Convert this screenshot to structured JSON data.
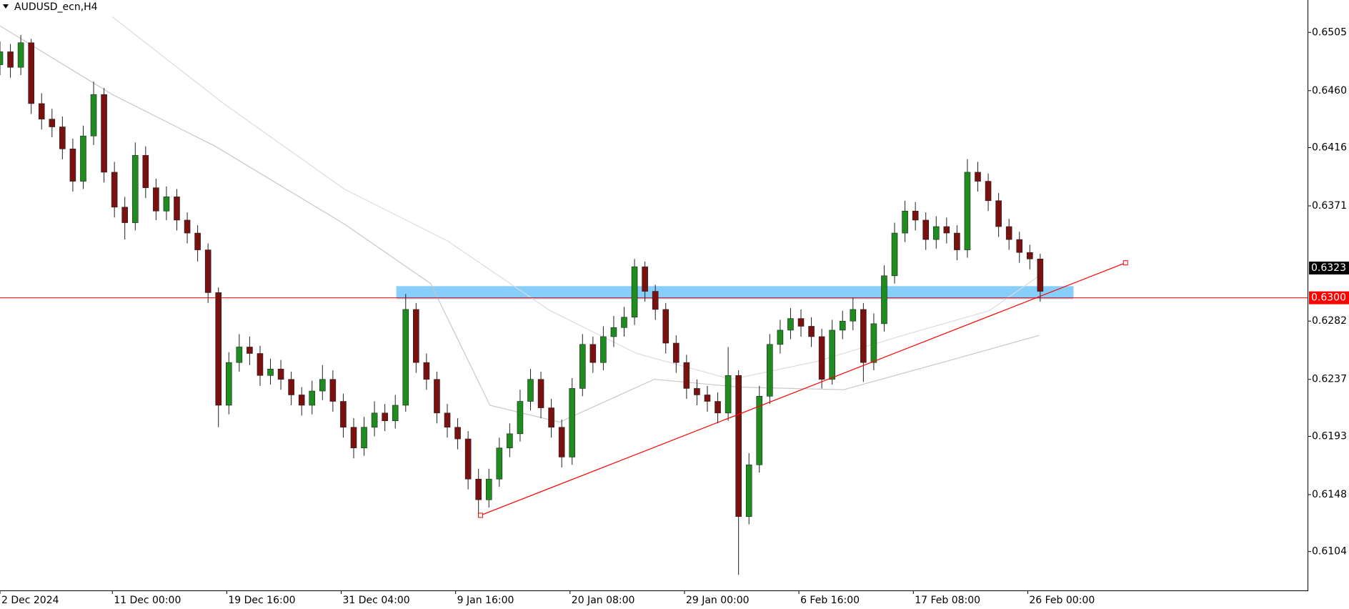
{
  "chart_data": {
    "type": "candlestick",
    "title": "AUDUSD_ecn,H4",
    "up_color": "#1e8c1e",
    "down_color": "#7a1010",
    "wick_color": "#222222",
    "open": [
      0.648,
      0.649,
      0.6478,
      0.6497,
      0.645,
      0.6438,
      0.6432,
      0.6415,
      0.639,
      0.6425,
      0.6457,
      0.6397,
      0.637,
      0.6358,
      0.641,
      0.6385,
      0.6367,
      0.6378,
      0.636,
      0.635,
      0.6337,
      0.6304,
      0.6217,
      0.625,
      0.6262,
      0.6257,
      0.624,
      0.6245,
      0.6237,
      0.6225,
      0.6217,
      0.6228,
      0.6237,
      0.622,
      0.62,
      0.6184,
      0.62,
      0.6211,
      0.6205,
      0.6217,
      0.6291,
      0.625,
      0.6237,
      0.6211,
      0.62,
      0.6191,
      0.616,
      0.6144,
      0.616,
      0.6184,
      0.6195,
      0.622,
      0.6237,
      0.6215,
      0.62,
      0.6177,
      0.623,
      0.6264,
      0.625,
      0.627,
      0.6277,
      0.6285,
      0.6324,
      0.6305,
      0.6291,
      0.6265,
      0.625,
      0.623,
      0.6225,
      0.622,
      0.6211,
      0.624,
      0.6131,
      0.6171,
      0.6224,
      0.6264,
      0.6275,
      0.6284,
      0.6278,
      0.627,
      0.6237,
      0.6275,
      0.6282,
      0.6291,
      0.625,
      0.628,
      0.6317,
      0.635,
      0.6367,
      0.636,
      0.6345,
      0.6355,
      0.635,
      0.6337,
      0.6397,
      0.639,
      0.6375,
      0.6355,
      0.6345,
      0.6335,
      0.633
    ],
    "high": [
      0.6498,
      0.6496,
      0.6503,
      0.65,
      0.6458,
      0.6446,
      0.644,
      0.6423,
      0.6433,
      0.6467,
      0.6462,
      0.6405,
      0.6378,
      0.642,
      0.6417,
      0.6392,
      0.6386,
      0.6384,
      0.6366,
      0.6356,
      0.6342,
      0.6308,
      0.6258,
      0.6272,
      0.627,
      0.6263,
      0.6253,
      0.6252,
      0.6243,
      0.6231,
      0.6236,
      0.6248,
      0.6244,
      0.6226,
      0.6207,
      0.6208,
      0.622,
      0.6218,
      0.6225,
      0.6303,
      0.6296,
      0.6257,
      0.6243,
      0.6218,
      0.6207,
      0.6197,
      0.6168,
      0.6168,
      0.6192,
      0.6203,
      0.6229,
      0.6245,
      0.6243,
      0.6222,
      0.6206,
      0.6238,
      0.6272,
      0.627,
      0.6278,
      0.6286,
      0.6293,
      0.633,
      0.6328,
      0.631,
      0.6296,
      0.6271,
      0.6256,
      0.6237,
      0.6232,
      0.6227,
      0.6262,
      0.6244,
      0.618,
      0.6232,
      0.6272,
      0.6283,
      0.6292,
      0.6291,
      0.6285,
      0.6276,
      0.6283,
      0.629,
      0.63,
      0.6296,
      0.6288,
      0.6325,
      0.6358,
      0.6375,
      0.6374,
      0.6366,
      0.6363,
      0.6362,
      0.6356,
      0.6407,
      0.6405,
      0.6396,
      0.6381,
      0.6361,
      0.6351,
      0.6341,
      0.6334
    ],
    "low": [
      0.6472,
      0.647,
      0.6472,
      0.6442,
      0.643,
      0.6424,
      0.6407,
      0.6382,
      0.6384,
      0.6418,
      0.6389,
      0.6362,
      0.6345,
      0.6352,
      0.6377,
      0.636,
      0.636,
      0.6352,
      0.6342,
      0.6328,
      0.6296,
      0.62,
      0.621,
      0.6243,
      0.6248,
      0.6232,
      0.6233,
      0.6229,
      0.6217,
      0.6209,
      0.621,
      0.6221,
      0.6212,
      0.6192,
      0.6176,
      0.6178,
      0.6193,
      0.6197,
      0.6199,
      0.6212,
      0.6242,
      0.6229,
      0.6203,
      0.6192,
      0.6183,
      0.6152,
      0.6131,
      0.6138,
      0.6154,
      0.6177,
      0.6189,
      0.6213,
      0.6207,
      0.6192,
      0.6169,
      0.6171,
      0.6224,
      0.6242,
      0.6244,
      0.6262,
      0.627,
      0.6279,
      0.6297,
      0.6283,
      0.6257,
      0.6242,
      0.6222,
      0.6217,
      0.6212,
      0.6203,
      0.6205,
      0.6086,
      0.6125,
      0.6165,
      0.6218,
      0.6257,
      0.6268,
      0.627,
      0.6262,
      0.623,
      0.6233,
      0.6268,
      0.6275,
      0.6235,
      0.6244,
      0.6274,
      0.6311,
      0.6343,
      0.6352,
      0.6337,
      0.6338,
      0.6342,
      0.6329,
      0.6331,
      0.6382,
      0.6367,
      0.6347,
      0.6337,
      0.6327,
      0.6322,
      0.6297
    ],
    "close": [
      0.649,
      0.6478,
      0.6497,
      0.645,
      0.6438,
      0.6432,
      0.6415,
      0.639,
      0.6425,
      0.6457,
      0.6397,
      0.637,
      0.6358,
      0.641,
      0.6385,
      0.6367,
      0.6378,
      0.636,
      0.635,
      0.6337,
      0.6304,
      0.6217,
      0.625,
      0.6262,
      0.6257,
      0.624,
      0.6245,
      0.6237,
      0.6225,
      0.6217,
      0.6228,
      0.6237,
      0.622,
      0.62,
      0.6184,
      0.62,
      0.6211,
      0.6205,
      0.6217,
      0.6291,
      0.625,
      0.6237,
      0.6211,
      0.62,
      0.6191,
      0.616,
      0.6144,
      0.616,
      0.6184,
      0.6195,
      0.622,
      0.6237,
      0.6215,
      0.62,
      0.6177,
      0.623,
      0.6264,
      0.625,
      0.627,
      0.6277,
      0.6285,
      0.6324,
      0.6305,
      0.6291,
      0.6265,
      0.625,
      0.623,
      0.6225,
      0.622,
      0.6211,
      0.624,
      0.6131,
      0.6171,
      0.6224,
      0.6264,
      0.6275,
      0.6284,
      0.6278,
      0.627,
      0.6237,
      0.6275,
      0.6282,
      0.6291,
      0.625,
      0.628,
      0.6317,
      0.635,
      0.6367,
      0.636,
      0.6345,
      0.6355,
      0.635,
      0.6337,
      0.6397,
      0.639,
      0.6375,
      0.6355,
      0.6345,
      0.6335,
      0.633,
      0.6305
    ],
    "lines": [
      {
        "color": "#c8c8c8",
        "x": [
          0,
          10.8,
          20.7,
          33.1,
          41.4,
          47.1,
          53.8,
          62.9,
          71.1,
          81.1,
          91,
          99.9
        ],
        "y": [
          0.651,
          0.6457,
          0.6417,
          0.6357,
          0.6311,
          0.6217,
          0.6204,
          0.6237,
          0.6231,
          0.6229,
          0.6251,
          0.6271
        ]
      },
      {
        "color": "#dcdcdc",
        "x": [
          10.8,
          21.5,
          33.1,
          43,
          52.9,
          61.2,
          70.3,
          78.6,
          86.8,
          95.1,
          99.9
        ],
        "y": [
          0.6517,
          0.645,
          0.6384,
          0.6344,
          0.629,
          0.6257,
          0.6237,
          0.6251,
          0.6271,
          0.629,
          0.6317
        ]
      }
    ],
    "trendline": {
      "color": "#ff0000",
      "x": [
        46.2,
        108.2
      ],
      "y": [
        0.6132,
        0.6327
      ]
    },
    "zone": {
      "color": "#87cefa",
      "x": [
        38.1,
        103.2
      ],
      "y": [
        0.6299,
        0.6309
      ]
    },
    "hline": {
      "value": 0.63,
      "label": "0.6300",
      "color": "#ff0000"
    },
    "last_price": 0.6323,
    "xlim": [
      0,
      125.7
    ],
    "ylim": [
      0.6074,
      0.653
    ],
    "xticks": [
      {
        "value": 0,
        "label": "2 Dec 2024"
      },
      {
        "value": 10.8,
        "label": "11 Dec 00:00"
      },
      {
        "value": 21.8,
        "label": "19 Dec 16:00"
      },
      {
        "value": 32.8,
        "label": "31 Dec 04:00"
      },
      {
        "value": 43.8,
        "label": "9 Jan 16:00"
      },
      {
        "value": 54.8,
        "label": "20 Jan 08:00"
      },
      {
        "value": 65.8,
        "label": "29 Jan 00:00"
      },
      {
        "value": 76.8,
        "label": "6 Feb 16:00"
      },
      {
        "value": 87.8,
        "label": "17 Feb 08:00"
      },
      {
        "value": 98.8,
        "label": "26 Feb 00:00"
      }
    ],
    "yticks": [
      0.6505,
      {
        "value": 0.646,
        "label": "0.6460"
      },
      0.6416,
      0.6371,
      0.6282,
      0.6237,
      0.6193,
      0.6148,
      0.6104
    ]
  }
}
